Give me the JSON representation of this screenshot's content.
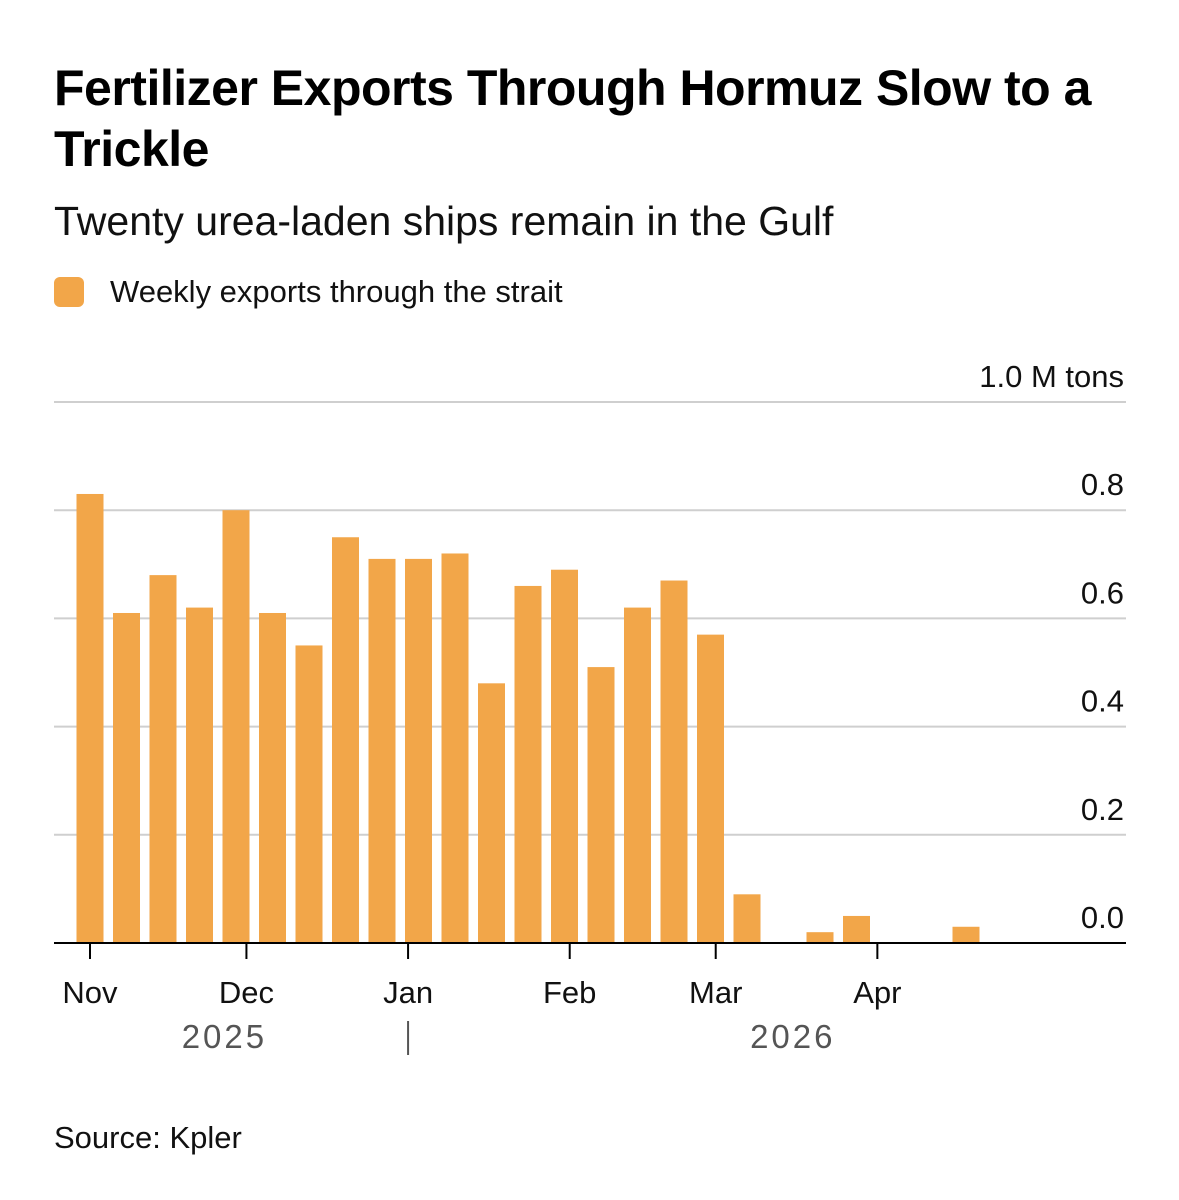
{
  "header": {
    "title": "Fertilizer Exports Through Hormuz Slow to a Trickle",
    "subtitle": "Twenty urea-laden ships remain in the Gulf"
  },
  "legend": {
    "label": "Weekly exports through the strait",
    "color": "#f2a649"
  },
  "source": "Source: Kpler",
  "chart_data": {
    "type": "bar",
    "unit_label": "1.0 M tons",
    "ylim": [
      0,
      1.0
    ],
    "yticks": [
      0.0,
      0.2,
      0.4,
      0.6,
      0.8,
      1.0
    ],
    "ytick_labels": [
      "0.0",
      "0.2",
      "0.4",
      "0.6",
      "0.8",
      "1.0 M tons"
    ],
    "grid": true,
    "y_axis_position": "right",
    "legend_position": "top-left",
    "bar_color": "#f2a649",
    "x": [
      "2025-11-01",
      "2025-11-08",
      "2025-11-15",
      "2025-11-22",
      "2025-11-29",
      "2025-12-06",
      "2025-12-13",
      "2025-12-20",
      "2025-12-27",
      "2026-01-03",
      "2026-01-10",
      "2026-01-17",
      "2026-01-24",
      "2026-01-31",
      "2026-02-07",
      "2026-02-14",
      "2026-02-21",
      "2026-02-28",
      "2026-03-07",
      "2026-03-14",
      "2026-03-21",
      "2026-03-28",
      "2026-04-04",
      "2026-04-11",
      "2026-04-18",
      "2026-04-25"
    ],
    "values": [
      0.83,
      0.61,
      0.68,
      0.62,
      0.8,
      0.61,
      0.55,
      0.75,
      0.71,
      0.71,
      0.72,
      0.48,
      0.66,
      0.69,
      0.51,
      0.62,
      0.67,
      0.57,
      0.09,
      0,
      0.02,
      0.05,
      0,
      0,
      0.03,
      0
    ],
    "month_ticks": [
      {
        "label": "Nov",
        "date": "2025-11-01"
      },
      {
        "label": "Dec",
        "date": "2025-12-01"
      },
      {
        "label": "Jan",
        "date": "2026-01-01"
      },
      {
        "label": "Feb",
        "date": "2026-02-01"
      },
      {
        "label": "Mar",
        "date": "2026-03-01"
      },
      {
        "label": "Apr",
        "date": "2026-04-01"
      }
    ],
    "year_labels": [
      {
        "label": "2025",
        "date": "2025-12-01"
      },
      {
        "label": "2026",
        "date": "2026-03-20"
      }
    ],
    "year_divider": "2026-01-01"
  }
}
